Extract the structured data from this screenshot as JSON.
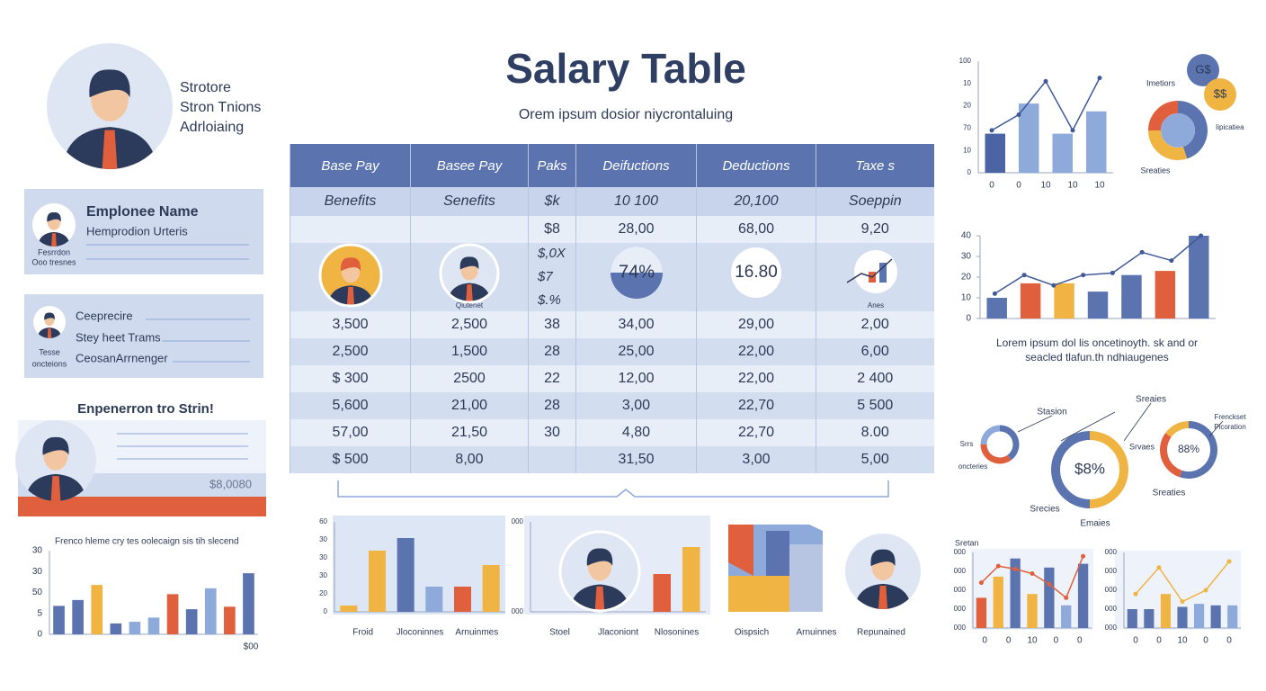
{
  "header": {
    "title": "Salary Table",
    "subtitle": "Orem ipsum dosior niycrontaluing"
  },
  "profile": {
    "lines": [
      "Strotore",
      "Stron Tnions",
      "Adrloiaing"
    ]
  },
  "card1": {
    "title": "Emplonee Name",
    "subtitle": "Hemprodion Urteris",
    "caption": [
      "Fesrrdon",
      "Ooo tresnes"
    ]
  },
  "card2": {
    "lines": [
      "Ceeprecire",
      "Stey heet Trams",
      "CeosanArrnenger"
    ],
    "caption": [
      "Tesse",
      "oncteions"
    ]
  },
  "promo": {
    "title": "Enpenerron tro Strin!",
    "amount": "$8,0080"
  },
  "table": {
    "columns": [
      "Base Pay",
      "Basee Pay",
      "Paks",
      "Deifuctions",
      "Deductions",
      "Taxe s"
    ],
    "rows": [
      [
        "Benefits",
        "Senefits",
        "$k",
        "10 100",
        "20,100",
        "Soeppin"
      ],
      [
        null,
        null,
        "$8",
        "28,00",
        "68,00",
        "9,20"
      ],
      [
        "3,500",
        "2,500",
        "38",
        "34,00",
        "29,00",
        "2,00"
      ],
      [
        "2,500",
        "1,500",
        "28",
        "25,00",
        "22,00",
        "6,00"
      ],
      [
        "$ 300",
        "2500",
        "22",
        "12,00",
        "22,00",
        "2 400"
      ],
      [
        "5,600",
        "21,00",
        "28",
        "3,00",
        "22,70",
        "5 500"
      ],
      [
        "57,00",
        "21,50",
        "30",
        "4,80",
        "22,70",
        "8.00"
      ],
      [
        "$ 500",
        "8,00",
        null,
        "31,50",
        "3,00",
        "5,00"
      ]
    ],
    "icon_row": {
      "paks": [
        "$,0X",
        "$7",
        "$.%"
      ],
      "pie": "74%",
      "badge": "16.80",
      "captions": [
        "Qiutenet",
        "Anes"
      ]
    }
  },
  "caption": [
    "Lorem ipsum dol lis oncetinoyth. sk and or",
    "seacled tlafun.th ndhiaugenes"
  ],
  "pie": {
    "labels": [
      "G$",
      "$$",
      "Imetiors",
      "Iipicatiea",
      "Sreaties"
    ]
  },
  "donuts": {
    "labels": [
      "Sreaies",
      "Stasion",
      "Srrs",
      "oncteries",
      "Frenckset",
      "Picoration",
      "Srvaes",
      "$8%",
      "88%",
      "Sreaties",
      "Srecies",
      "Emaies"
    ]
  },
  "blocks": {
    "x_labels": [
      "Oispsich",
      "Arnuinnes",
      "Repunained"
    ]
  },
  "charts": [
    {
      "title": "Frenco hleme cry tes oolecaign sis tih slecend",
      "y_labels": [
        "30",
        "30",
        "50",
        "5",
        "0"
      ],
      "x_labels": [
        "$00"
      ],
      "ylim": [
        0,
        100
      ],
      "values": [
        34,
        41,
        59,
        13,
        15,
        20,
        48,
        30,
        55,
        33,
        73
      ],
      "colors": [
        "#5b74b0",
        "#5b74b0",
        "#f0b443",
        "#5b74b0",
        "#8eaadb",
        "#8eaadb",
        "#e0603d",
        "#5b74b0",
        "#8eaadb",
        "#e0603d",
        "#5b74b0"
      ]
    },
    {
      "y_labels": [
        "100",
        "10",
        "20",
        "70",
        "10",
        "0"
      ],
      "x_labels": [
        "0",
        "0",
        "10",
        "10",
        "10"
      ],
      "ylim": [
        0,
        100
      ],
      "values": [
        35,
        62,
        35,
        55
      ],
      "colors": [
        "#4a64a4",
        "#8eaadb",
        "#8eaadb",
        "#8eaadb"
      ],
      "line": [
        38,
        52,
        82,
        38,
        85
      ],
      "line_color": "#3f5a9a"
    },
    {
      "yticks": [
        40,
        30,
        20,
        10,
        0
      ],
      "ylim": [
        0,
        40
      ],
      "values": [
        10,
        17,
        17,
        13,
        21,
        23,
        40
      ],
      "colors": [
        "#5b74b0",
        "#e0603d",
        "#f0b443",
        "#5b74b0",
        "#5b74b0",
        "#e0603d",
        "#5b74b0"
      ],
      "line": [
        12,
        21,
        16,
        21,
        22,
        32,
        28,
        40
      ],
      "line_color": "#3f5a9a"
    },
    {
      "y_labels": [
        "60",
        "30",
        "30",
        "30",
        "20",
        "0"
      ],
      "x_labels": [
        "Froid",
        "Jloconinnes",
        "Arnuinmes"
      ],
      "ylim": [
        0,
        100
      ],
      "values": [
        7,
        68,
        82,
        28,
        28,
        52
      ],
      "colors": [
        "#f0b443",
        "#f0b443",
        "#5b74b0",
        "#8eaadb",
        "#e0603d",
        "#f0b443"
      ]
    },
    {
      "y_labels": [
        "000",
        "000"
      ],
      "x_labels": [
        "Stoel",
        "Jlaconiont",
        "Nlosonines"
      ],
      "ylim": [
        0,
        100
      ],
      "values": [
        null,
        null,
        null,
        null,
        42,
        72
      ],
      "colors": [
        "#e0603d",
        "#e0603d",
        "#e0603d",
        "#e0603d",
        "#e0603d",
        "#f0b443"
      ]
    },
    {
      "title": "Sretan",
      "y_labels": [
        "000",
        "000",
        "000",
        "000",
        "000"
      ],
      "x_labels": [
        "0",
        "0",
        "10",
        "0",
        "0"
      ],
      "ylim": [
        0,
        100
      ],
      "values": [
        40,
        68,
        92,
        45,
        80,
        30,
        85
      ],
      "colors": [
        "#e0603d",
        "#f0b443",
        "#5b74b0",
        "#f0b443",
        "#5b74b0",
        "#8eaadb",
        "#5b74b0"
      ],
      "line": [
        60,
        82,
        78,
        72,
        58,
        40,
        95
      ],
      "line_color": "#e0603d"
    },
    {
      "y_labels": [
        "000",
        "000",
        "000",
        "000",
        "000"
      ],
      "x_labels": [
        "0",
        "0",
        "10",
        "0",
        "0"
      ],
      "ylim": [
        0,
        100
      ],
      "values": [
        25,
        25,
        45,
        28,
        32,
        30,
        30
      ],
      "colors": [
        "#5b74b0",
        "#5b74b0",
        "#f0b443",
        "#5b74b0",
        "#8eaadb",
        "#5b74b0",
        "#8eaadb"
      ],
      "line": [
        45,
        80,
        35,
        50,
        88
      ],
      "line_color": "#f0b443"
    }
  ]
}
